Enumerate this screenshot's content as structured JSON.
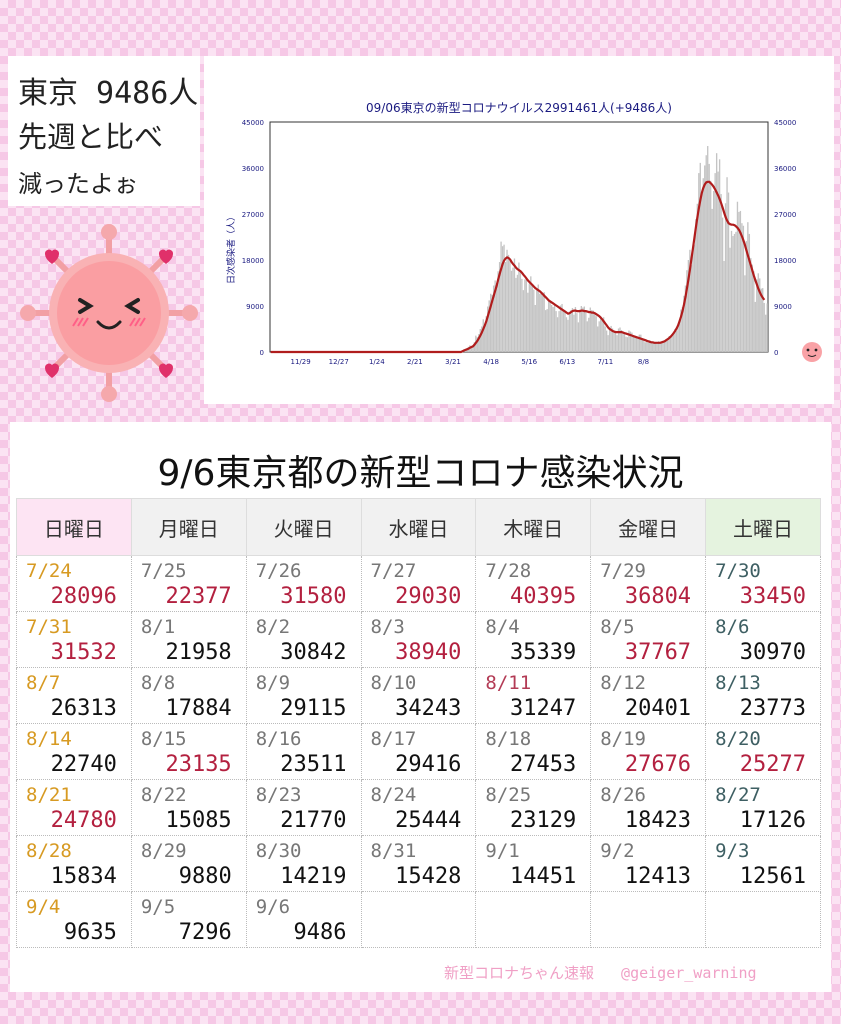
{
  "bubble": {
    "line1": "東京 9486人",
    "line2": "先週と比べ",
    "line3": "減ったよぉ"
  },
  "chart_data": {
    "type": "bar",
    "title": "09/06東京の新型コロナウイルス2991461人(+9486人)",
    "ylabel": "日次感染者（人）",
    "ylim": [
      0,
      45000
    ],
    "y_ticks": [
      "0",
      "9000",
      "18000",
      "27000",
      "36000",
      "45000"
    ],
    "x_tick_labels": [
      "11/29",
      "12/27",
      "1/24",
      "2/21",
      "3/21",
      "4/18",
      "5/16",
      "6/13",
      "7/11",
      "8/8"
    ],
    "series": [
      {
        "kind": "bar",
        "color": "#c4c4c4",
        "values": [
          0,
          0,
          0,
          0,
          0,
          0,
          0,
          0,
          0,
          0,
          0,
          0,
          0,
          0,
          0,
          0,
          0,
          0,
          0,
          0,
          0,
          0,
          0,
          0,
          0,
          0,
          0,
          0,
          0,
          0,
          0,
          0,
          0,
          0,
          0,
          0,
          0,
          0,
          0,
          0,
          0,
          0,
          0,
          0,
          0,
          0,
          0,
          0,
          0,
          0,
          0,
          0,
          0,
          0,
          0,
          0,
          0,
          0,
          0,
          0,
          0,
          0,
          0,
          0,
          0,
          0,
          0,
          0,
          0,
          0,
          0,
          0,
          0,
          0,
          0,
          0,
          0,
          0,
          0,
          0,
          0,
          0,
          0,
          0,
          0,
          0,
          0,
          0,
          0,
          0,
          0,
          0,
          0,
          0,
          0,
          0,
          0,
          0,
          0,
          0,
          0,
          0,
          0,
          0,
          0,
          0,
          0,
          0,
          0,
          0,
          0,
          0,
          0,
          0,
          0,
          0,
          0,
          0,
          0,
          0,
          0,
          0,
          0,
          0,
          0,
          0,
          0,
          0,
          1,
          310,
          523,
          617,
          715,
          1010,
          1300,
          1100,
          1100,
          1900,
          3200,
          2900,
          3500,
          4500,
          5000,
          6400,
          5500,
          7000,
          8900,
          10100,
          11400,
          11200,
          13000,
          14000,
          13500,
          15800,
          17600,
          21600,
          20700,
          21000,
          17600,
          20000,
          19000,
          17800,
          15900,
          16500,
          18300,
          14500,
          15100,
          17500,
          16000,
          14300,
          12100,
          14200,
          14600,
          11600,
          13400,
          14800,
          13000,
          12200,
          9200,
          12200,
          13200,
          11400,
          11400,
          11000,
          11700,
          8200,
          8400,
          10400,
          9900,
          9200,
          8800,
          9500,
          8000,
          6800,
          8000,
          9100,
          9400,
          7900,
          7700,
          6800,
          6300,
          7900,
          8200,
          8600,
          7300,
          8800,
          7600,
          5800,
          8300,
          9000,
          8700,
          8900,
          7900,
          6000,
          6700,
          8700,
          8200,
          8100,
          7500,
          7000,
          5000,
          6000,
          7000,
          6500,
          6800,
          5000,
          4200,
          3300,
          4400,
          5100,
          4600,
          4000,
          3700,
          3300,
          4600,
          4800,
          4300,
          3900,
          3600,
          3000,
          2900,
          4200,
          4000,
          3800,
          3300,
          2900,
          2800,
          2600,
          3400,
          3400,
          2500,
          2400,
          1900,
          2200,
          1800,
          2300,
          2000,
          1800,
          1800,
          1700,
          1600,
          2100,
          1800,
          1700,
          1900,
          2000,
          2100,
          2200,
          3100,
          2700,
          3500,
          3800,
          4500,
          4100,
          5000,
          6000,
          8300,
          8800,
          11000,
          13000,
          16000,
          18000,
          20000,
          17000,
          20000,
          21000,
          26000,
          29000,
          35000,
          37000,
          31000,
          34000,
          36500,
          38500,
          40300,
          36800,
          33500,
          28000,
          31500,
          35000,
          38900,
          35300,
          37700,
          30900,
          26300,
          17800,
          29100,
          34200,
          31200,
          20400,
          23700,
          22700,
          23100,
          23500,
          29400,
          27400,
          27600,
          25200,
          24700,
          15000,
          21700,
          25400,
          23100,
          18400,
          17100,
          15800,
          9800,
          14200,
          15400,
          14400,
          12400,
          12500,
          9600,
          7300,
          9500
        ]
      },
      {
        "kind": "line",
        "color": "#b01d1d",
        "values": [
          0,
          0,
          0,
          0,
          0,
          0,
          0,
          0,
          0,
          0,
          0,
          0,
          0,
          0,
          0,
          0,
          0,
          0,
          0,
          0,
          0,
          0,
          0,
          0,
          0,
          0,
          0,
          0,
          0,
          0,
          0,
          0,
          0,
          0,
          0,
          0,
          0,
          0,
          0,
          0,
          0,
          0,
          0,
          0,
          0,
          0,
          0,
          0,
          0,
          0,
          0,
          0,
          0,
          0,
          0,
          0,
          0,
          0,
          0,
          0,
          0,
          0,
          0,
          0,
          0,
          0,
          0,
          0,
          0,
          0,
          0,
          0,
          0,
          0,
          0,
          0,
          0,
          0,
          0,
          0,
          0,
          0,
          0,
          0,
          0,
          0,
          0,
          0,
          0,
          0,
          0,
          0,
          0,
          0,
          0,
          0,
          0,
          0,
          0,
          0,
          0,
          0,
          0,
          0,
          0,
          0,
          0,
          0,
          0,
          0,
          0,
          0,
          0,
          0,
          0,
          0,
          0,
          0,
          0,
          0,
          0,
          0,
          0,
          0,
          0,
          0,
          0,
          0,
          0,
          150,
          300,
          420,
          520,
          650,
          820,
          980,
          1100,
          1400,
          1800,
          2200,
          2700,
          3200,
          3800,
          4500,
          5200,
          6000,
          7000,
          8000,
          9000,
          10000,
          11000,
          12000,
          13000,
          14200,
          15300,
          16300,
          17200,
          17900,
          18300,
          18500,
          18400,
          18100,
          17600,
          17200,
          16900,
          16500,
          16200,
          16000,
          15800,
          15500,
          15100,
          14800,
          14400,
          14000,
          13700,
          13400,
          13100,
          12800,
          12500,
          12300,
          12100,
          11900,
          11600,
          11300,
          11000,
          10700,
          10400,
          10100,
          9900,
          9700,
          9500,
          9300,
          9100,
          8900,
          8700,
          8500,
          8300,
          8100,
          7900,
          7700,
          7500,
          7600,
          7800,
          8000,
          8100,
          8100,
          8000,
          8000,
          8000,
          8100,
          8100,
          8000,
          8000,
          7900,
          7800,
          7800,
          7700,
          7700,
          7600,
          7400,
          7200,
          7000,
          6700,
          6400,
          6000,
          5600,
          5200,
          4800,
          4500,
          4300,
          4100,
          4000,
          3900,
          3900,
          3900,
          3900,
          3900,
          3800,
          3700,
          3600,
          3500,
          3400,
          3300,
          3200,
          3100,
          3000,
          2900,
          2800,
          2700,
          2600,
          2500,
          2400,
          2300,
          2200,
          2100,
          2000,
          1900,
          1900,
          1800,
          1800,
          1800,
          1800,
          1800,
          1900,
          2000,
          2100,
          2300,
          2500,
          2700,
          3000,
          3300,
          3700,
          4100,
          4600,
          5200,
          6000,
          6900,
          8000,
          9300,
          10800,
          12500,
          14300,
          16200,
          18200,
          20200,
          22300,
          24400,
          26400,
          28200,
          29800,
          31100,
          32100,
          32800,
          33200,
          33300,
          33300,
          33000,
          32700,
          32300,
          31800,
          31200,
          30600,
          29900,
          29100,
          28200,
          27300,
          26400,
          25700,
          25200,
          25000,
          24900,
          24900,
          24800,
          24600,
          24300,
          23900,
          23300,
          22600,
          21800,
          20900,
          19900,
          18900,
          17900,
          16900,
          15900,
          14900,
          14000,
          13200,
          12400,
          11700,
          11100,
          10600,
          10200
        ]
      }
    ]
  },
  "table": {
    "title": "9/6東京都の新型コロナ感染状況",
    "headers": [
      "日曜日",
      "月曜日",
      "火曜日",
      "水曜日",
      "木曜日",
      "金曜日",
      "土曜日"
    ],
    "rows": [
      [
        {
          "date": "7/24",
          "value": "28096"
        },
        {
          "date": "7/25",
          "value": "22377"
        },
        {
          "date": "7/26",
          "value": "31580"
        },
        {
          "date": "7/27",
          "value": "29030"
        },
        {
          "date": "7/28",
          "value": "40395"
        },
        {
          "date": "7/29",
          "value": "36804"
        },
        {
          "date": "7/30",
          "value": "33450"
        }
      ],
      [
        {
          "date": "7/31",
          "value": "31532"
        },
        {
          "date": "8/1",
          "value": "21958"
        },
        {
          "date": "8/2",
          "value": "30842"
        },
        {
          "date": "8/3",
          "value": "38940"
        },
        {
          "date": "8/4",
          "value": "35339"
        },
        {
          "date": "8/5",
          "value": "37767"
        },
        {
          "date": "8/6",
          "value": "30970"
        }
      ],
      [
        {
          "date": "8/7",
          "value": "26313"
        },
        {
          "date": "8/8",
          "value": "17884"
        },
        {
          "date": "8/9",
          "value": "29115"
        },
        {
          "date": "8/10",
          "value": "34243"
        },
        {
          "date": "8/11",
          "value": "31247"
        },
        {
          "date": "8/12",
          "value": "20401"
        },
        {
          "date": "8/13",
          "value": "23773"
        }
      ],
      [
        {
          "date": "8/14",
          "value": "22740"
        },
        {
          "date": "8/15",
          "value": "23135"
        },
        {
          "date": "8/16",
          "value": "23511"
        },
        {
          "date": "8/17",
          "value": "29416"
        },
        {
          "date": "8/18",
          "value": "27453"
        },
        {
          "date": "8/19",
          "value": "27676"
        },
        {
          "date": "8/20",
          "value": "25277"
        }
      ],
      [
        {
          "date": "8/21",
          "value": "24780"
        },
        {
          "date": "8/22",
          "value": "15085"
        },
        {
          "date": "8/23",
          "value": "21770"
        },
        {
          "date": "8/24",
          "value": "25444"
        },
        {
          "date": "8/25",
          "value": "23129"
        },
        {
          "date": "8/26",
          "value": "18423"
        },
        {
          "date": "8/27",
          "value": "17126"
        }
      ],
      [
        {
          "date": "8/28",
          "value": "15834"
        },
        {
          "date": "8/29",
          "value": "9880"
        },
        {
          "date": "8/30",
          "value": "14219"
        },
        {
          "date": "8/31",
          "value": "15428"
        },
        {
          "date": "9/1",
          "value": "14451"
        },
        {
          "date": "9/2",
          "value": "12413"
        },
        {
          "date": "9/3",
          "value": "12561"
        }
      ],
      [
        {
          "date": "9/4",
          "value": "9635"
        },
        {
          "date": "9/5",
          "value": "7296"
        },
        {
          "date": "9/6",
          "value": "9486"
        },
        {
          "date": "",
          "value": ""
        },
        {
          "date": "",
          "value": ""
        },
        {
          "date": "",
          "value": ""
        },
        {
          "date": "",
          "value": ""
        }
      ]
    ],
    "hot_cells": [
      "0-0",
      "0-1",
      "0-2",
      "0-3",
      "0-4",
      "0-5",
      "0-6",
      "1-0",
      "1-3",
      "1-5",
      "3-1",
      "3-5",
      "3-6",
      "4-0"
    ],
    "red_dates": [
      "2-4"
    ]
  },
  "credit": {
    "name": "新型コロナちゃん速報",
    "handle": "@geiger_warning"
  },
  "colors": {
    "accent_red": "#b3203f",
    "sunday": "#d79a22",
    "saturday": "#3e5f63",
    "line": "#b01d1d",
    "bars": "#c4c4c4"
  }
}
